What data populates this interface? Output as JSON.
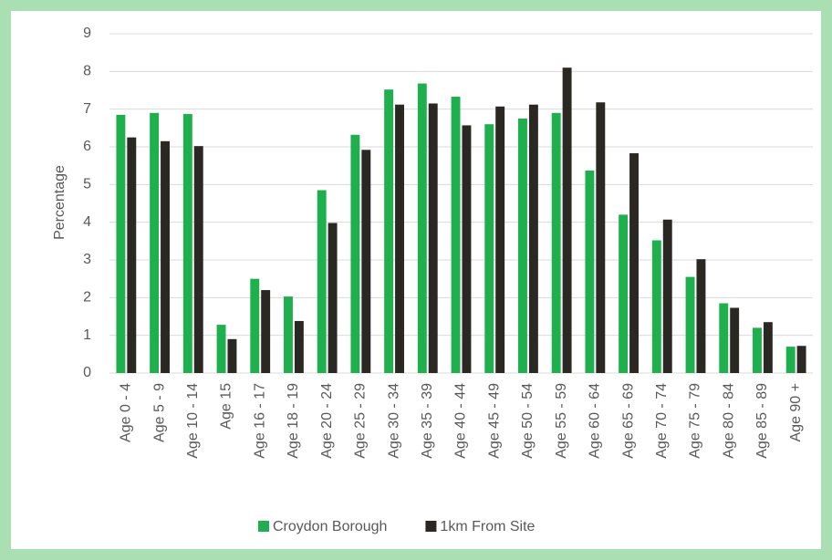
{
  "chart_data": {
    "type": "bar",
    "y_label": "Percentage",
    "categories": [
      "Age 0 - 4",
      "Age 5 - 9",
      "Age 10 - 14",
      "Age 15",
      "Age 16 - 17",
      "Age 18 - 19",
      "Age 20 - 24",
      "Age 25 - 29",
      "Age 30 - 34",
      "Age 35 - 39",
      "Age 40 - 44",
      "Age 45 - 49",
      "Age 50 - 54",
      "Age 55 - 59",
      "Age 60 - 64",
      "Age 65 - 69",
      "Age 70 - 74",
      "Age 75 - 79",
      "Age 80 - 84",
      "Age 85 - 89",
      "Age 90 +"
    ],
    "series": [
      {
        "name": "Croydon Borough",
        "color": "#1fb04e",
        "values": [
          6.85,
          6.9,
          6.87,
          1.28,
          2.5,
          2.03,
          4.85,
          6.32,
          7.52,
          7.68,
          7.33,
          6.6,
          6.75,
          6.9,
          5.37,
          4.2,
          3.52,
          2.55,
          1.85,
          1.2,
          0.7
        ]
      },
      {
        "name": "1km From Site",
        "color": "#2b2723",
        "values": [
          6.25,
          6.15,
          6.02,
          0.9,
          2.2,
          1.38,
          3.98,
          5.92,
          7.12,
          7.15,
          6.57,
          7.07,
          7.12,
          8.1,
          7.18,
          5.83,
          4.07,
          3.02,
          1.73,
          1.35,
          0.72
        ]
      }
    ],
    "ylim": [
      0,
      9
    ],
    "yticks": [
      0,
      1,
      2,
      3,
      4,
      5,
      6,
      7,
      8,
      9
    ],
    "grid": true,
    "legend": "bottom"
  }
}
